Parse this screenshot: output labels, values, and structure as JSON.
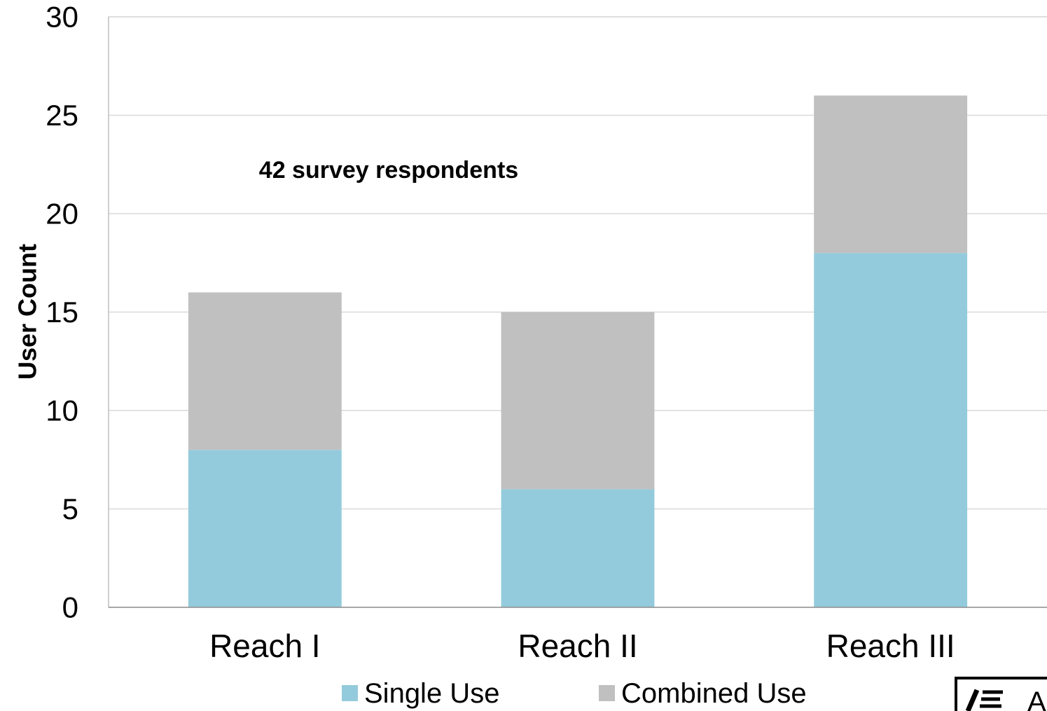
{
  "chart_data": {
    "type": "bar",
    "stacked": true,
    "categories": [
      "Reach I",
      "Reach II",
      "Reach III"
    ],
    "series": [
      {
        "name": "Single Use",
        "values": [
          8,
          6,
          18
        ],
        "color": "#94cbdc"
      },
      {
        "name": "Combined Use",
        "values": [
          8,
          9,
          8
        ],
        "color": "#c0c0c0"
      }
    ],
    "title": "",
    "xlabel": "",
    "ylabel": "User Count",
    "ylim": [
      0,
      30
    ],
    "yticks": [
      "0",
      "5",
      "10",
      "15",
      "20",
      "25",
      "30"
    ],
    "grid": true,
    "annotation": "42 survey respondents",
    "legend_position": "bottom"
  },
  "logo_text": "A"
}
